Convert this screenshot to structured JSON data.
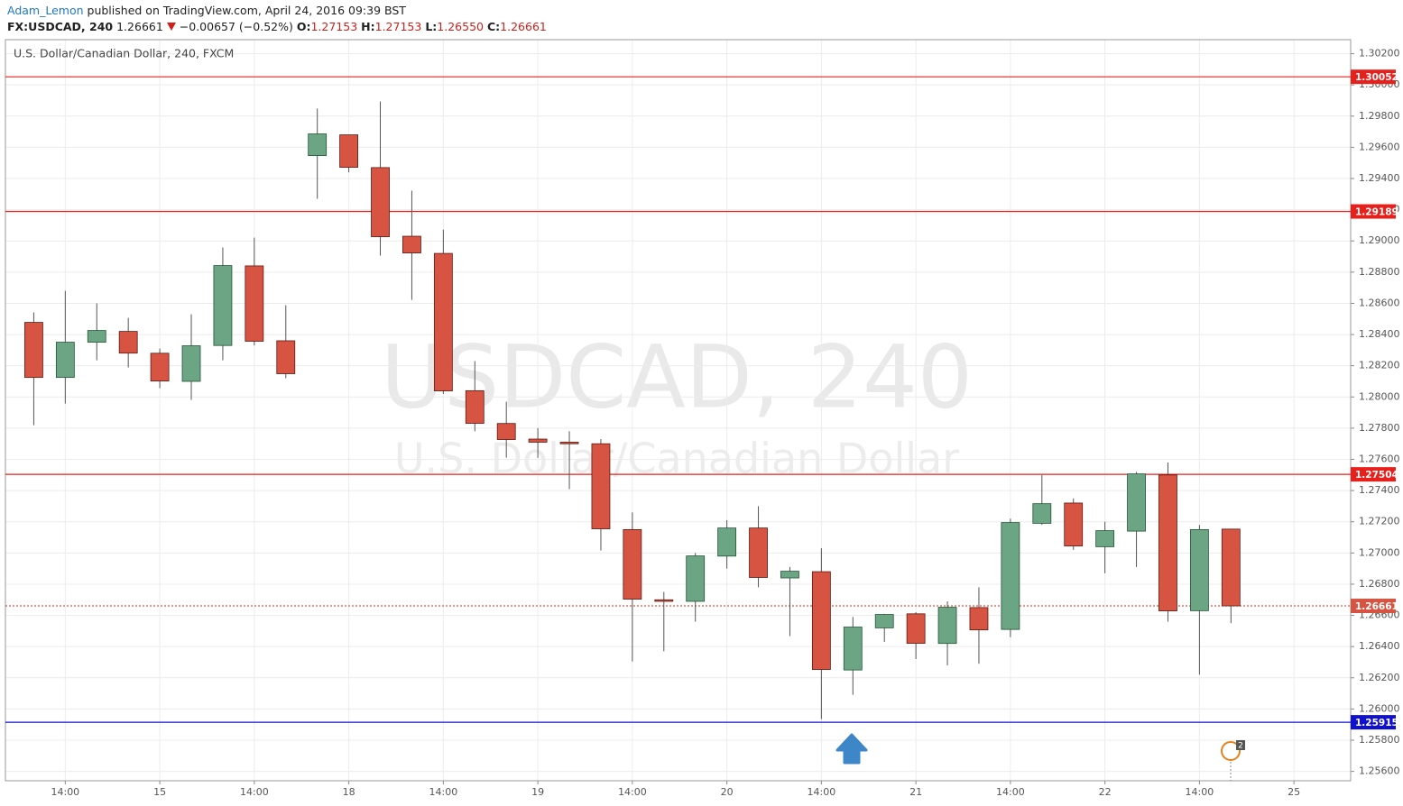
{
  "header": {
    "author": "Adam_Lemon",
    "published": " published on TradingView.com, April 24, 2016 09:39 BST",
    "symbol": "FX:USDCAD, 240",
    "last": "1.26661",
    "change": "−0.00657 (−0.52%)",
    "o": "O:",
    "open": "1.27153",
    "h": "H:",
    "high": "1.27153",
    "l": "L:",
    "low": "1.26550",
    "c": "C:",
    "close": "1.26661"
  },
  "chart_data": {
    "type": "candlestick",
    "legend": "U.S. Dollar/Canadian Dollar, 240, FXCM",
    "watermark": "USDCAD, 240",
    "watermark_sub": "U.S. Dollar/Canadian Dollar",
    "up_color": "#6ba583",
    "up_border": "#225437",
    "down_color": "#d75442",
    "down_border": "#5b1a13",
    "grid": true,
    "categories": [
      null,
      "14:00",
      null,
      null,
      "15",
      null,
      null,
      "14:00",
      null,
      null,
      "18",
      null,
      null,
      "14:00",
      null,
      null,
      "19",
      null,
      null,
      "14:00",
      null,
      null,
      "20",
      null,
      null,
      "14:00",
      null,
      null,
      "21",
      null,
      null,
      "14:00",
      null,
      null,
      "22",
      null,
      null,
      "14:00",
      null,
      null,
      "25"
    ],
    "open": [
      1.28478,
      1.28125,
      1.28351,
      1.2842,
      1.2828,
      1.281,
      1.2833,
      1.2884,
      1.2836,
      1.29547,
      1.2968,
      1.2947,
      1.2903,
      1.2892,
      1.2804,
      1.2783,
      1.2773,
      1.2771,
      1.277,
      1.2715,
      1.267,
      1.2669,
      1.2698,
      1.2716,
      1.2684,
      1.2688,
      1.2625,
      1.2652,
      1.2661,
      1.2642,
      1.2665,
      1.2651,
      1.2719,
      1.2732,
      1.2704,
      1.2714,
      1.275,
      1.2663,
      1.27153,
      null,
      null
    ],
    "high": [
      1.28542,
      1.2868,
      1.286,
      1.28507,
      1.2831,
      1.2853,
      1.28958,
      1.29021,
      1.28588,
      1.29848,
      1.2968,
      1.29894,
      1.29322,
      1.29073,
      1.2823,
      1.2797,
      1.278,
      1.2778,
      1.2773,
      1.2726,
      1.2675,
      1.27,
      1.2721,
      1.273,
      1.2691,
      1.2703,
      1.2659,
      1.2661,
      1.2662,
      1.2669,
      1.2678,
      1.2722,
      1.275,
      1.2735,
      1.272,
      1.2752,
      1.2758,
      1.2718,
      1.27153,
      null,
      null
    ],
    "low": [
      1.27819,
      1.27958,
      1.28235,
      1.28189,
      1.28056,
      1.27981,
      1.28235,
      1.2833,
      1.2812,
      1.2927,
      1.2944,
      1.28906,
      1.28622,
      1.2802,
      1.2778,
      1.27611,
      1.2761,
      1.27409,
      1.27016,
      1.26305,
      1.2637,
      1.2656,
      1.269,
      1.2678,
      1.26467,
      1.25935,
      1.26091,
      1.2643,
      1.2632,
      1.2628,
      1.2629,
      1.2646,
      1.2718,
      1.2702,
      1.2687,
      1.2691,
      1.2656,
      1.2622,
      1.2655,
      null,
      null
    ],
    "close": [
      1.28125,
      1.28351,
      1.28426,
      1.28281,
      1.28102,
      1.28328,
      1.28842,
      1.28357,
      1.28149,
      1.29686,
      1.29472,
      1.29027,
      1.28923,
      1.28039,
      1.27831,
      1.27727,
      1.2771,
      1.277,
      1.27155,
      1.26704,
      1.2669,
      1.26981,
      1.2716,
      1.26843,
      1.26883,
      1.26253,
      1.26525,
      1.26606,
      1.26421,
      1.26652,
      1.26507,
      1.27195,
      1.27316,
      1.27045,
      1.27143,
      1.27507,
      1.26629,
      1.2715,
      1.26661,
      null,
      null
    ],
    "xlim": [
      -0.9,
      41.8
    ],
    "ylim": [
      1.2554,
      1.3029
    ],
    "yticks": [
      {
        "value": 1.256,
        "label": "1.25600"
      },
      {
        "value": 1.258,
        "label": "1.25800"
      },
      {
        "value": 1.26,
        "label": "1.26000"
      },
      {
        "value": 1.262,
        "label": "1.26200"
      },
      {
        "value": 1.264,
        "label": "1.26400"
      },
      {
        "value": 1.266,
        "label": "1.26600"
      },
      {
        "value": 1.268,
        "label": "1.26800"
      },
      {
        "value": 1.27,
        "label": "1.27000"
      },
      {
        "value": 1.272,
        "label": "1.27200"
      },
      {
        "value": 1.274,
        "label": "1.27400"
      },
      {
        "value": 1.276,
        "label": "1.27600"
      },
      {
        "value": 1.278,
        "label": "1.27800"
      },
      {
        "value": 1.28,
        "label": "1.28000"
      },
      {
        "value": 1.282,
        "label": "1.28200"
      },
      {
        "value": 1.284,
        "label": "1.28400"
      },
      {
        "value": 1.286,
        "label": "1.28600"
      },
      {
        "value": 1.288,
        "label": "1.28800"
      },
      {
        "value": 1.29,
        "label": "1.29000"
      },
      {
        "value": 1.292,
        "label": "1.29200"
      },
      {
        "value": 1.294,
        "label": "1.29400"
      },
      {
        "value": 1.296,
        "label": "1.29600"
      },
      {
        "value": 1.298,
        "label": "1.29800"
      },
      {
        "value": 1.3,
        "label": "1.30000"
      },
      {
        "value": 1.302,
        "label": "1.30200"
      }
    ],
    "levels": [
      {
        "value": 1.30052,
        "color": "#e8201c"
      },
      {
        "value": 1.29189,
        "color": "#e8201c"
      },
      {
        "value": 1.27504,
        "color": "#e8201c"
      },
      {
        "value": 1.25915,
        "color": "#1010d0"
      },
      {
        "value": 1.26661,
        "color": "#d75442",
        "dotted": true
      }
    ],
    "event_count": "2"
  }
}
